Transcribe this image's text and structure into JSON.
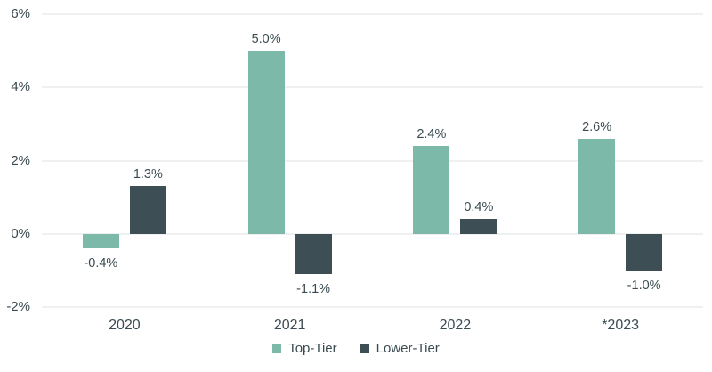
{
  "chart_data": {
    "type": "bar",
    "title": "",
    "xlabel": "",
    "ylabel": "",
    "categories": [
      "2020",
      "2021",
      "2022",
      "*2023"
    ],
    "series": [
      {
        "name": "Top-Tier",
        "color": "#7db9a8",
        "values": [
          -0.4,
          5.0,
          2.4,
          2.6
        ],
        "labels": [
          "-0.4%",
          "5.0%",
          "2.4%",
          "2.6%"
        ]
      },
      {
        "name": "Lower-Tier",
        "color": "#3d4e54",
        "values": [
          1.3,
          -1.1,
          0.4,
          -1.0
        ],
        "labels": [
          "1.3%",
          "-1.1%",
          "0.4%",
          "-1.0%"
        ]
      }
    ],
    "ylim": [
      -2,
      6
    ],
    "yticks": [
      {
        "value": 6,
        "label": "6%"
      },
      {
        "value": 4,
        "label": "4%"
      },
      {
        "value": 2,
        "label": "2%"
      },
      {
        "value": 0,
        "label": "0%"
      },
      {
        "value": -2,
        "label": "-2%"
      }
    ],
    "grid": true,
    "legend_position": "bottom"
  },
  "legend": {
    "items": [
      {
        "label": "Top-Tier",
        "color": "#7db9a8"
      },
      {
        "label": "Lower-Tier",
        "color": "#3d4e54"
      }
    ]
  },
  "colors": {
    "top_tier": "#7db9a8",
    "lower_tier": "#3d4e54",
    "gridline": "#eef1f0",
    "text": "#3a4b51",
    "background": "#ffffff"
  }
}
